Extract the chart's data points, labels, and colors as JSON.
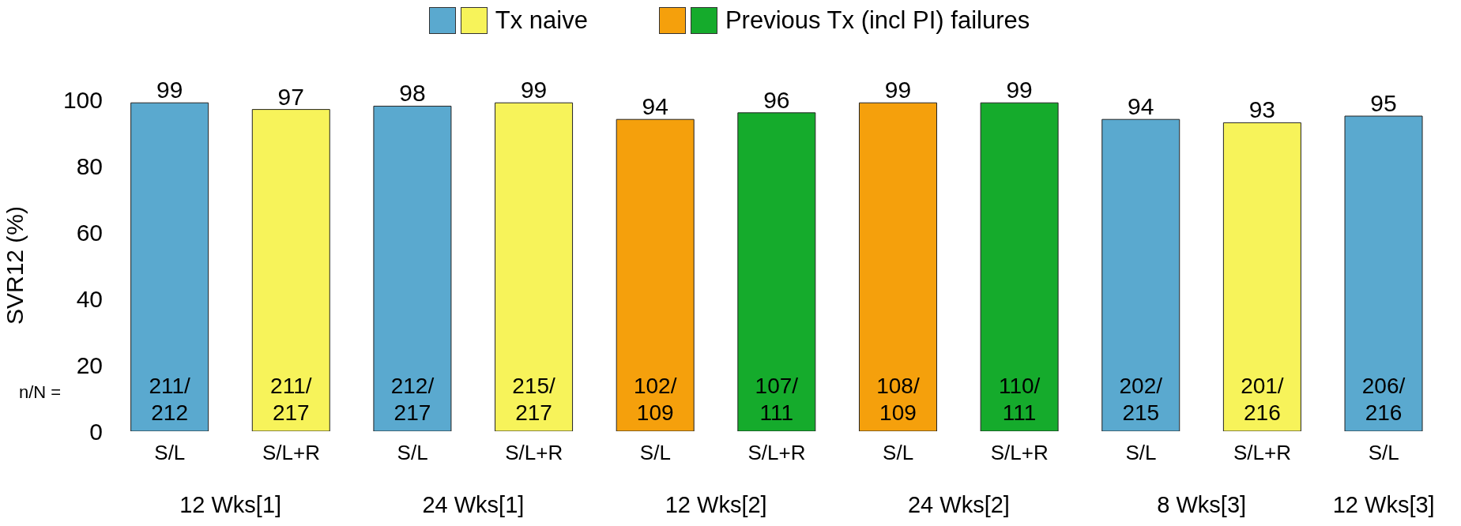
{
  "chart_data": {
    "type": "bar",
    "ylabel": "SVR12 (%)",
    "categories": [
      "S/L",
      "S/L+R",
      "S/L",
      "S/L+R",
      "S/L",
      "S/L+R",
      "S/L",
      "S/L+R",
      "S/L",
      "S/L+R",
      "S/L"
    ],
    "stacked": true,
    "series": [
      {
        "name": "Tx naive",
        "colors": [
          "#5aa9cf",
          "#f7f35a",
          "#5aa9cf",
          "#f7f35a",
          null,
          null,
          null,
          null,
          "#5aa9cf",
          "#f7f35a",
          "#5aa9cf"
        ],
        "values": [
          99,
          97,
          98,
          99,
          null,
          null,
          null,
          null,
          94,
          93,
          95
        ]
      },
      {
        "name": "Previous Tx (incl PI) failures",
        "colors": [
          null,
          null,
          null,
          null,
          "#f5a00c",
          "#15ab2c",
          "#f5a00c",
          "#15ab2c",
          null,
          null,
          null
        ],
        "values": [
          null,
          null,
          null,
          null,
          94,
          96,
          99,
          99,
          null,
          null,
          null
        ]
      }
    ],
    "ylim": [
      0,
      100
    ],
    "yticks": [
      0,
      20,
      40,
      60,
      80,
      100
    ],
    "grid": false,
    "legend": "top",
    "data_labels": true,
    "annotations": [
      "211/212",
      "211/217",
      "212/217",
      "215/217",
      "102/109",
      "107/111",
      "108/109",
      "110/111",
      "202/215",
      "201/216",
      "206/216",
      "n/N =",
      "12 Wks[1]",
      "24 Wks[1]",
      "12 Wks[2]",
      "24 Wks[2]",
      "8 Wks[3]",
      "12 Wks[3]"
    ]
  }
}
